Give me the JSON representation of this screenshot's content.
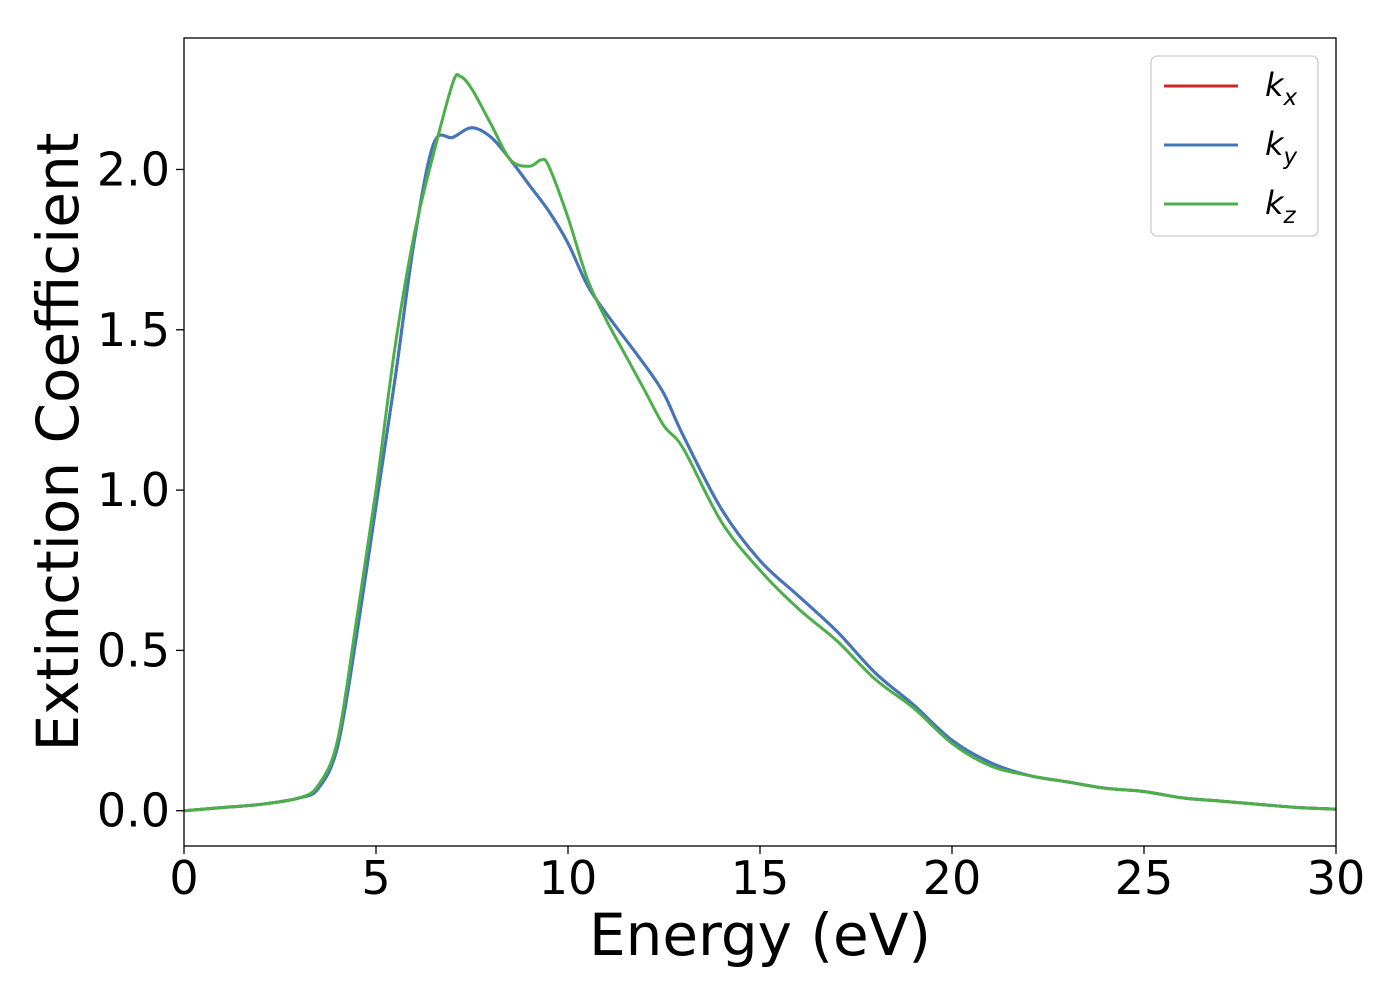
{
  "chart_data": {
    "type": "line",
    "xlabel": "Energy (eV)",
    "ylabel": "Extinction Coefficient",
    "xlim": [
      0,
      30
    ],
    "ylim": [
      -0.11,
      2.41
    ],
    "xticks": [
      0,
      5,
      10,
      15,
      20,
      25,
      30
    ],
    "yticks": [
      0.0,
      0.5,
      1.0,
      1.5,
      2.0
    ],
    "xtick_labels": [
      "0",
      "5",
      "10",
      "15",
      "20",
      "25",
      "30"
    ],
    "ytick_labels": [
      "0.0",
      "0.5",
      "1.0",
      "1.5",
      "2.0"
    ],
    "grid": false,
    "legend_position": "top-right",
    "series": [
      {
        "name": "k_x",
        "label_base": "k",
        "label_sub": "x",
        "color": "#d62728",
        "x": [
          0,
          1,
          2,
          3,
          3.5,
          4,
          4.5,
          5,
          5.5,
          6,
          6.5,
          7,
          7.5,
          8,
          8.5,
          9,
          9.5,
          10,
          10.5,
          11,
          12,
          12.5,
          13,
          14,
          15,
          16,
          17,
          18,
          19,
          20,
          21,
          22,
          23,
          24,
          25,
          26,
          27,
          28,
          29,
          30
        ],
        "y": [
          0.0,
          0.01,
          0.02,
          0.04,
          0.07,
          0.2,
          0.55,
          0.95,
          1.35,
          1.78,
          2.08,
          2.1,
          2.13,
          2.1,
          2.03,
          1.95,
          1.87,
          1.77,
          1.64,
          1.55,
          1.39,
          1.3,
          1.17,
          0.94,
          0.78,
          0.67,
          0.56,
          0.43,
          0.33,
          0.22,
          0.15,
          0.11,
          0.09,
          0.07,
          0.06,
          0.04,
          0.03,
          0.02,
          0.01,
          0.005
        ]
      },
      {
        "name": "k_y",
        "label_base": "k",
        "label_sub": "y",
        "color": "#4178bc",
        "x": [
          0,
          1,
          2,
          3,
          3.5,
          4,
          4.5,
          5,
          5.5,
          6,
          6.5,
          7,
          7.5,
          8,
          8.5,
          9,
          9.5,
          10,
          10.5,
          11,
          12,
          12.5,
          13,
          14,
          15,
          16,
          17,
          18,
          19,
          20,
          21,
          22,
          23,
          24,
          25,
          26,
          27,
          28,
          29,
          30
        ],
        "y": [
          0.0,
          0.01,
          0.02,
          0.04,
          0.07,
          0.2,
          0.55,
          0.95,
          1.35,
          1.78,
          2.08,
          2.1,
          2.13,
          2.1,
          2.03,
          1.95,
          1.87,
          1.77,
          1.64,
          1.55,
          1.39,
          1.3,
          1.17,
          0.94,
          0.78,
          0.67,
          0.56,
          0.43,
          0.33,
          0.22,
          0.15,
          0.11,
          0.09,
          0.07,
          0.06,
          0.04,
          0.03,
          0.02,
          0.01,
          0.005
        ]
      },
      {
        "name": "k_z",
        "label_base": "k",
        "label_sub": "z",
        "color": "#4daf4a",
        "x": [
          0,
          1,
          2,
          3,
          3.5,
          4,
          4.5,
          5,
          5.5,
          6,
          6.5,
          7,
          7.2,
          7.5,
          8,
          8.5,
          9,
          9.3,
          9.5,
          10,
          10.5,
          11,
          11.5,
          12,
          12.5,
          13,
          14,
          15,
          16,
          17,
          18,
          19,
          20,
          21,
          22,
          23,
          24,
          25,
          26,
          27,
          28,
          29,
          30
        ],
        "y": [
          0.0,
          0.01,
          0.02,
          0.04,
          0.08,
          0.22,
          0.6,
          1.0,
          1.45,
          1.8,
          2.05,
          2.27,
          2.29,
          2.25,
          2.14,
          2.03,
          2.01,
          2.03,
          2.01,
          1.85,
          1.66,
          1.53,
          1.42,
          1.31,
          1.2,
          1.13,
          0.9,
          0.75,
          0.63,
          0.53,
          0.41,
          0.32,
          0.21,
          0.14,
          0.11,
          0.09,
          0.07,
          0.06,
          0.04,
          0.03,
          0.02,
          0.01,
          0.005
        ]
      }
    ]
  }
}
